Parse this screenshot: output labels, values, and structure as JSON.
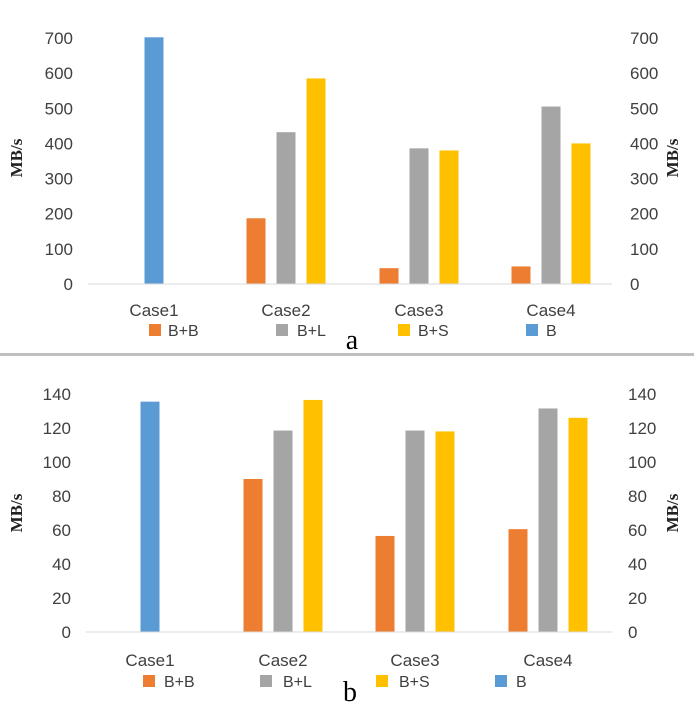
{
  "chart_data": [
    {
      "type": "bar",
      "panel_label": "a",
      "ylabel": "MB/s",
      "ylim": [
        0,
        700
      ],
      "yticks": [
        "0",
        "100",
        "200",
        "300",
        "400",
        "500",
        "600",
        "700"
      ],
      "categories": [
        "Case1",
        "Case2",
        "Case3",
        "Case4"
      ],
      "series": [
        {
          "name": "B+B",
          "color": "#ed7d31",
          "values": [
            null,
            187,
            45,
            50
          ]
        },
        {
          "name": "B+L",
          "color": "#a5a5a5",
          "values": [
            null,
            432,
            386,
            505
          ]
        },
        {
          "name": "B+S",
          "color": "#ffc000",
          "values": [
            null,
            585,
            380,
            400
          ]
        },
        {
          "name": "B",
          "color": "#5b9bd5",
          "values": [
            702,
            null,
            null,
            null
          ]
        }
      ],
      "legend": "bottom",
      "grid": false
    },
    {
      "type": "bar",
      "panel_label": "b",
      "ylabel": "MB/s",
      "ylim": [
        0,
        140
      ],
      "yticks": [
        "0",
        "20",
        "40",
        "60",
        "80",
        "100",
        "120",
        "140"
      ],
      "categories": [
        "Case1",
        "Case2",
        "Case3",
        "Case4"
      ],
      "series": [
        {
          "name": "B+B",
          "color": "#ed7d31",
          "values": [
            null,
            90,
            56.5,
            60.5
          ]
        },
        {
          "name": "B+L",
          "color": "#a5a5a5",
          "values": [
            null,
            118.5,
            118.5,
            131.5
          ]
        },
        {
          "name": "B+S",
          "color": "#ffc000",
          "values": [
            null,
            136.5,
            118,
            126
          ]
        },
        {
          "name": "B",
          "color": "#5b9bd5",
          "values": [
            135.5,
            null,
            null,
            null
          ]
        }
      ],
      "legend": "bottom",
      "grid": false
    }
  ]
}
